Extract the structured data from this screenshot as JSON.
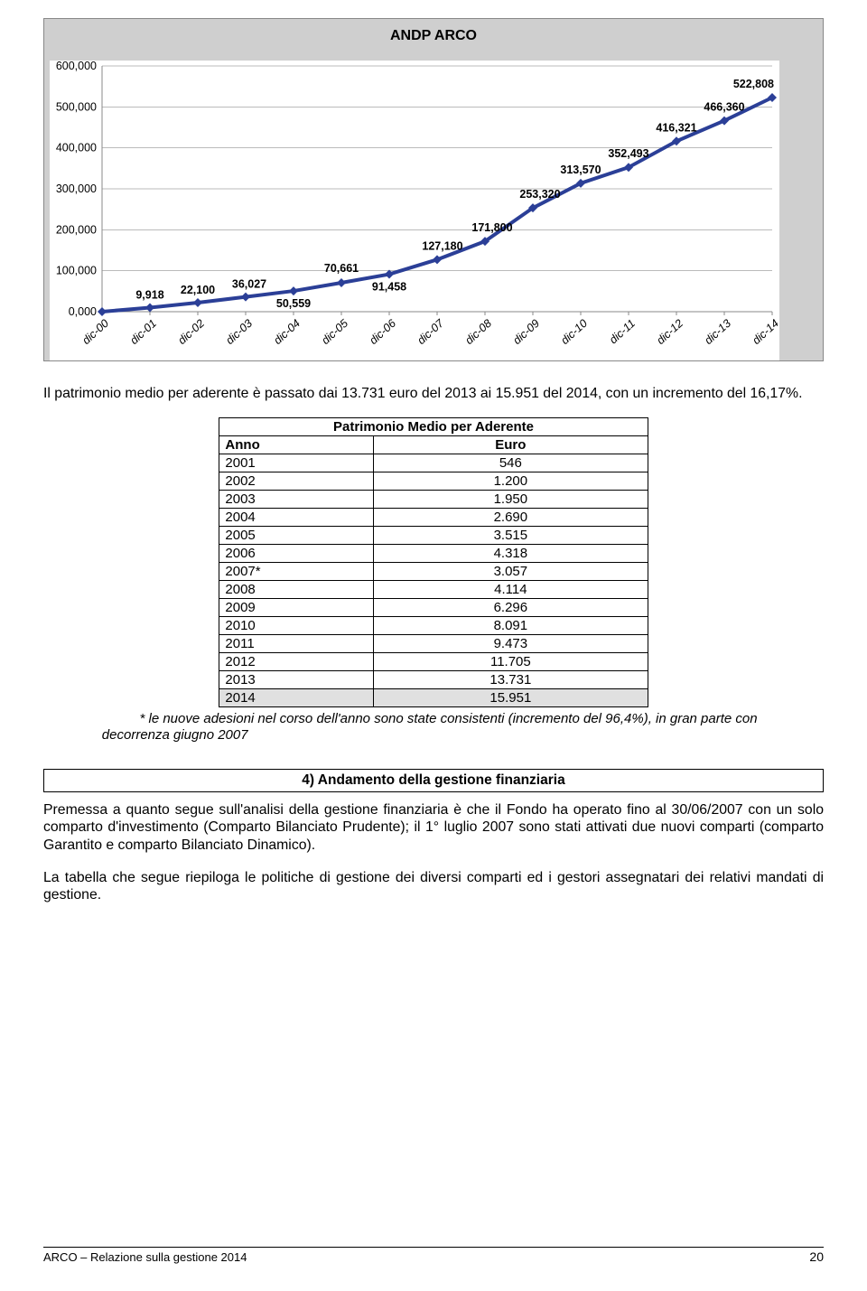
{
  "chart": {
    "title": "ANDP ARCO",
    "title_font_size": 16,
    "background": "#cfcfcf",
    "plot_background": "#ffffff",
    "line_color": "#2b3f97",
    "line_width": 4,
    "marker_color": "#2b3f97",
    "marker_size": 5,
    "grid_color": "#bbbbbb",
    "axis_color": "#888888",
    "y": {
      "min": 0,
      "max": 600000,
      "step": 100000,
      "format": "0,000",
      "ticks": [
        "0,000",
        "100,000",
        "200,000",
        "300,000",
        "400,000",
        "500,000",
        "600,000"
      ],
      "font_size": 12.5
    },
    "x": {
      "labels": [
        "dic-00",
        "dic-01",
        "dic-02",
        "dic-03",
        "dic-04",
        "dic-05",
        "dic-06",
        "dic-07",
        "dic-08",
        "dic-09",
        "dic-10",
        "dic-11",
        "dic-12",
        "dic-13",
        "dic-14"
      ],
      "font_size": 12.5,
      "font_style": "italic"
    },
    "values": [
      0,
      9918,
      22100,
      36027,
      50559,
      70661,
      91458,
      127180,
      171800,
      253320,
      313570,
      352493,
      416321,
      466360,
      522808
    ],
    "value_labels": [
      "",
      "9,918",
      "22,100",
      "36,027",
      "50,559",
      "70,661",
      "91,458",
      "127,180",
      "171,800",
      "253,320",
      "313,570",
      "352,493",
      "416,321",
      "466,360",
      "522,808"
    ],
    "value_label_font_size": 12.5
  },
  "para1": "Il patrimonio medio per aderente è passato dai 13.731 euro del 2013 ai 15.951 del 2014, con un incremento del 16,17%.",
  "table": {
    "title": "Patrimonio Medio per Aderente",
    "headers": [
      "Anno",
      "Euro"
    ],
    "rows": [
      [
        "2001",
        "546"
      ],
      [
        "2002",
        "1.200"
      ],
      [
        "2003",
        "1.950"
      ],
      [
        "2004",
        "2.690"
      ],
      [
        "2005",
        "3.515"
      ],
      [
        "2006",
        "4.318"
      ],
      [
        "2007*",
        "3.057"
      ],
      [
        "2008",
        "4.114"
      ],
      [
        "2009",
        "6.296"
      ],
      [
        "2010",
        "8.091"
      ],
      [
        "2011",
        "9.473"
      ],
      [
        "2012",
        "11.705"
      ],
      [
        "2013",
        "13.731"
      ],
      [
        "2014",
        "15.951"
      ]
    ],
    "highlight_last": true
  },
  "note": "          * le nuove adesioni nel corso dell'anno sono state consistenti (incremento del 96,4%), in gran parte con decorrenza giugno 2007",
  "section_heading": "4) Andamento della gestione finanziaria",
  "para2": "Premessa a quanto segue sull'analisi della gestione finanziaria è che il Fondo ha operato fino al 30/06/2007 con un solo comparto d'investimento (Comparto Bilanciato Prudente); il 1° luglio 2007 sono stati attivati due nuovi comparti (comparto Garantito e comparto Bilanciato Dinamico).",
  "para3": "La tabella che segue riepiloga le politiche di gestione dei diversi comparti ed i gestori assegnatari dei relativi mandati di gestione.",
  "footer": {
    "left": "ARCO – Relazione sulla gestione 2014",
    "page": "20"
  }
}
